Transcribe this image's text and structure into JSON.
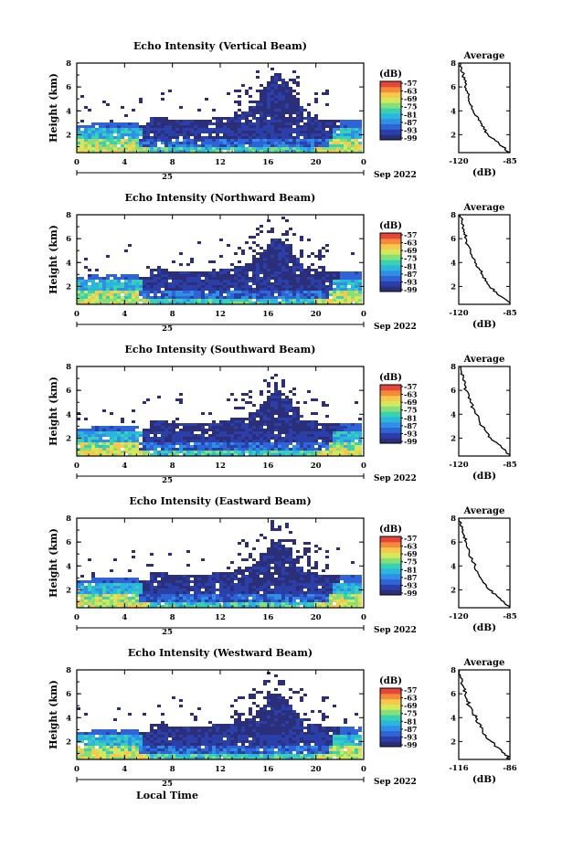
{
  "chart_data": [
    {
      "type": "heatmap",
      "title": "Echo Intensity (Vertical Beam)",
      "ylabel": "Height (km)",
      "xticks": [
        "0",
        "4",
        "8",
        "12",
        "16",
        "20",
        "0"
      ],
      "yticks": [
        "2",
        "4",
        "6",
        "8"
      ],
      "date_day": "25",
      "date_label": "Sep 2022",
      "xlim": [
        0,
        24
      ],
      "ylim": [
        0.5,
        8
      ],
      "colorbar": {
        "unit": "(dB)",
        "labels": [
          "-57",
          "-63",
          "-69",
          "-75",
          "-81",
          "-87",
          "-93",
          "-99"
        ]
      },
      "profile": {
        "title": "Average",
        "xlabel": "(dB)",
        "xticks": [
          "-120",
          "-85"
        ],
        "yticks": [
          "2",
          "4",
          "6",
          "8"
        ],
        "xlim": [
          -120,
          -85
        ],
        "ylim": [
          0.5,
          8
        ],
        "points": [
          [
            -85,
            0.5
          ],
          [
            -90,
            1.0
          ],
          [
            -95,
            1.5
          ],
          [
            -100,
            2.0
          ],
          [
            -103,
            2.5
          ],
          [
            -105,
            3.0
          ],
          [
            -107,
            3.5
          ],
          [
            -110,
            4.0
          ],
          [
            -112,
            4.5
          ],
          [
            -113,
            5.0
          ],
          [
            -114,
            5.5
          ],
          [
            -116,
            6.0
          ],
          [
            -115,
            6.5
          ],
          [
            -117,
            7.0
          ],
          [
            -118,
            7.5
          ],
          [
            -119,
            8.0
          ]
        ]
      }
    },
    {
      "type": "heatmap",
      "title": "Echo Intensity (Northward Beam)",
      "ylabel": "Height (km)",
      "xticks": [
        "0",
        "4",
        "8",
        "12",
        "16",
        "20",
        "0"
      ],
      "yticks": [
        "2",
        "4",
        "6",
        "8"
      ],
      "date_day": "25",
      "date_label": "Sep 2022",
      "xlim": [
        0,
        24
      ],
      "ylim": [
        0.5,
        8
      ],
      "colorbar": {
        "unit": "(dB)",
        "labels": [
          "-57",
          "-63",
          "-69",
          "-75",
          "-81",
          "-87",
          "-93",
          "-99"
        ]
      },
      "profile": {
        "title": "Average",
        "xlabel": "(dB)",
        "xticks": [
          "-120",
          "-85"
        ],
        "yticks": [
          "2",
          "4",
          "6",
          "8"
        ],
        "xlim": [
          -120,
          -85
        ],
        "ylim": [
          0.5,
          8
        ],
        "points": [
          [
            -85,
            0.5
          ],
          [
            -89,
            1.0
          ],
          [
            -94,
            1.5
          ],
          [
            -99,
            2.0
          ],
          [
            -102,
            2.5
          ],
          [
            -104,
            3.0
          ],
          [
            -106,
            3.5
          ],
          [
            -109,
            4.0
          ],
          [
            -111,
            4.5
          ],
          [
            -112,
            5.0
          ],
          [
            -114,
            5.5
          ],
          [
            -115,
            6.0
          ],
          [
            -116,
            6.5
          ],
          [
            -117,
            7.0
          ],
          [
            -118,
            7.5
          ],
          [
            -119,
            8.0
          ]
        ]
      }
    },
    {
      "type": "heatmap",
      "title": "Echo Intensity (Southward Beam)",
      "ylabel": "Height (km)",
      "xticks": [
        "0",
        "4",
        "8",
        "12",
        "16",
        "20",
        "0"
      ],
      "yticks": [
        "2",
        "4",
        "6",
        "8"
      ],
      "date_day": "25",
      "date_label": "Sep 2022",
      "xlim": [
        0,
        24
      ],
      "ylim": [
        0.5,
        8
      ],
      "colorbar": {
        "unit": "(dB)",
        "labels": [
          "-57",
          "-63",
          "-69",
          "-75",
          "-81",
          "-87",
          "-93",
          "-99"
        ]
      },
      "profile": {
        "title": "Average",
        "xlabel": "(dB)",
        "xticks": [
          "-120",
          "-85"
        ],
        "yticks": [
          "2",
          "4",
          "6",
          "8"
        ],
        "xlim": [
          -120,
          -85
        ],
        "ylim": [
          0.5,
          8
        ],
        "points": [
          [
            -85,
            0.5
          ],
          [
            -88,
            1.0
          ],
          [
            -93,
            1.5
          ],
          [
            -98,
            2.0
          ],
          [
            -101,
            2.5
          ],
          [
            -104,
            3.0
          ],
          [
            -106,
            3.5
          ],
          [
            -108,
            4.0
          ],
          [
            -110,
            4.5
          ],
          [
            -112,
            5.0
          ],
          [
            -113,
            5.5
          ],
          [
            -115,
            6.0
          ],
          [
            -116,
            6.5
          ],
          [
            -117,
            7.0
          ],
          [
            -118,
            7.5
          ],
          [
            -119,
            8.0
          ]
        ]
      }
    },
    {
      "type": "heatmap",
      "title": "Echo Intensity (Eastward Beam)",
      "ylabel": "Height (km)",
      "xticks": [
        "0",
        "4",
        "8",
        "12",
        "16",
        "20",
        "0"
      ],
      "yticks": [
        "2",
        "4",
        "6",
        "8"
      ],
      "date_day": "25",
      "date_label": "Sep 2022",
      "xlim": [
        0,
        24
      ],
      "ylim": [
        0.5,
        8
      ],
      "colorbar": {
        "unit": "(dB)",
        "labels": [
          "-57",
          "-63",
          "-69",
          "-75",
          "-81",
          "-87",
          "-93",
          "-99"
        ]
      },
      "profile": {
        "title": "Average",
        "xlabel": "(dB)",
        "xticks": [
          "-120",
          "-85"
        ],
        "yticks": [
          "2",
          "4",
          "6",
          "8"
        ],
        "xlim": [
          -120,
          -85
        ],
        "ylim": [
          0.5,
          8
        ],
        "points": [
          [
            -85,
            0.5
          ],
          [
            -89,
            1.0
          ],
          [
            -94,
            1.5
          ],
          [
            -99,
            2.0
          ],
          [
            -102,
            2.5
          ],
          [
            -105,
            3.0
          ],
          [
            -107,
            3.5
          ],
          [
            -109,
            4.0
          ],
          [
            -111,
            4.5
          ],
          [
            -113,
            5.0
          ],
          [
            -114,
            5.5
          ],
          [
            -115,
            6.0
          ],
          [
            -116,
            6.5
          ],
          [
            -117,
            7.0
          ],
          [
            -119,
            7.5
          ],
          [
            -120,
            8.0
          ]
        ]
      }
    },
    {
      "type": "heatmap",
      "title": "Echo Intensity (Westward Beam)",
      "ylabel": "Height (km)",
      "xticks": [
        "0",
        "4",
        "8",
        "12",
        "16",
        "20",
        "0"
      ],
      "yticks": [
        "2",
        "4",
        "6",
        "8"
      ],
      "date_day": "25",
      "date_label": "Sep 2022",
      "xlabel": "Local Time",
      "xlim": [
        0,
        24
      ],
      "ylim": [
        0.5,
        8
      ],
      "colorbar": {
        "unit": "(dB)",
        "labels": [
          "-57",
          "-63",
          "-69",
          "-75",
          "-81",
          "-87",
          "-93",
          "-99"
        ]
      },
      "profile": {
        "title": "Average",
        "xlabel": "(dB)",
        "xticks": [
          "-116",
          "-86"
        ],
        "yticks": [
          "2",
          "4",
          "6",
          "8"
        ],
        "xlim": [
          -116,
          -86
        ],
        "ylim": [
          0.5,
          8
        ],
        "points": [
          [
            -86,
            0.5
          ],
          [
            -89,
            1.0
          ],
          [
            -93,
            1.5
          ],
          [
            -97,
            2.0
          ],
          [
            -100,
            2.5
          ],
          [
            -102,
            3.0
          ],
          [
            -104,
            3.5
          ],
          [
            -106,
            4.0
          ],
          [
            -108,
            4.5
          ],
          [
            -110,
            5.0
          ],
          [
            -111,
            5.5
          ],
          [
            -112,
            6.0
          ],
          [
            -113,
            6.5
          ],
          [
            -114,
            7.0
          ],
          [
            -115,
            7.5
          ],
          [
            -116,
            8.0
          ]
        ]
      }
    }
  ],
  "colors": {
    "colormap": [
      "#2b2f7a",
      "#2a3fa8",
      "#2f63d6",
      "#2f8fe6",
      "#2bb7dc",
      "#39d1b4",
      "#86e07a",
      "#d3e85a",
      "#f7c84b",
      "#f48b3a",
      "#e8453a"
    ],
    "missing": "#ffffff"
  }
}
